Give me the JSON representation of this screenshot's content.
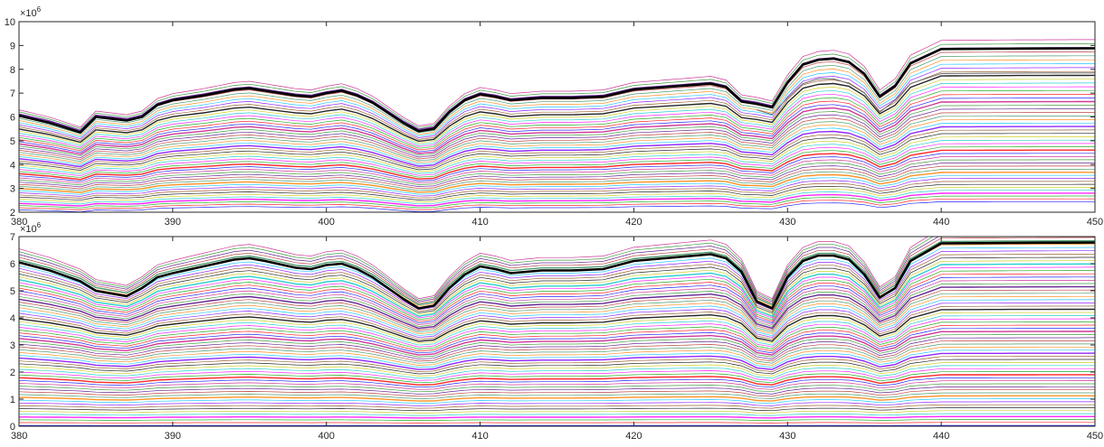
{
  "chart_data": [
    {
      "type": "line",
      "xlim": [
        380,
        450
      ],
      "ylim": [
        2,
        10
      ],
      "x_ticks": [
        "380",
        "390",
        "400",
        "410",
        "420",
        "430",
        "440",
        "450"
      ],
      "y_ticks": [
        "2",
        "3",
        "4",
        "5",
        "6",
        "7",
        "8",
        "9",
        "10"
      ],
      "exponent_label": "×10",
      "exponent_power": "6",
      "grid": false,
      "highlight_series": {
        "color": "#000000",
        "x": [
          380,
          382,
          384,
          385,
          387,
          388,
          389,
          390,
          392,
          394,
          395,
          396,
          398,
          399,
          400,
          401,
          402,
          403,
          405,
          406,
          407,
          408,
          409,
          410,
          411,
          412,
          414,
          416,
          418,
          420,
          422,
          424,
          425,
          426,
          427,
          428,
          429,
          430,
          431,
          432,
          433,
          434,
          435,
          436,
          437,
          438,
          440,
          445,
          450
        ],
        "values": [
          6.05,
          5.75,
          5.35,
          6.0,
          5.85,
          6.0,
          6.5,
          6.7,
          6.9,
          7.15,
          7.2,
          7.1,
          6.9,
          6.85,
          7.0,
          7.1,
          6.9,
          6.6,
          5.75,
          5.4,
          5.5,
          6.2,
          6.7,
          6.95,
          6.85,
          6.7,
          6.8,
          6.8,
          6.85,
          7.15,
          7.25,
          7.35,
          7.4,
          7.25,
          6.65,
          6.55,
          6.4,
          7.45,
          8.2,
          8.4,
          8.45,
          8.3,
          7.8,
          6.85,
          7.3,
          8.25,
          8.85,
          8.87,
          8.88
        ]
      },
      "secondary_series": {
        "color": "#6e6e6e",
        "x": [
          428,
          429,
          430,
          431,
          432,
          433,
          434,
          435,
          436,
          437,
          438,
          440,
          445,
          450
        ],
        "values": [
          6.3,
          6.1,
          6.8,
          7.4,
          7.6,
          7.6,
          7.4,
          7.0,
          6.2,
          6.7,
          7.4,
          7.82,
          7.84,
          7.85
        ]
      },
      "band_series": {
        "count": 48,
        "start": 2.1,
        "end": 6.3,
        "colors": [
          "#0000ff",
          "#ff0000",
          "#00a000",
          "#ff00ff",
          "#00c8c8",
          "#c8c800",
          "#000000",
          "#8b4513",
          "#7f00ff",
          "#00bfff",
          "#ff7f00",
          "#2e8b57",
          "#b22222",
          "#4b0082",
          "#228b22",
          "#c71585"
        ]
      }
    },
    {
      "type": "line",
      "xlim": [
        380,
        450
      ],
      "ylim": [
        0,
        7
      ],
      "x_ticks": [
        "380",
        "390",
        "400",
        "410",
        "420",
        "430",
        "440",
        "450"
      ],
      "y_ticks": [
        "0",
        "1",
        "2",
        "3",
        "4",
        "5",
        "6",
        "7"
      ],
      "exponent_label": "×10",
      "exponent_power": "6",
      "grid": false,
      "highlight_series": {
        "color": "#000000",
        "x": [
          380,
          382,
          384,
          385,
          387,
          388,
          389,
          390,
          392,
          394,
          395,
          396,
          398,
          399,
          400,
          401,
          402,
          403,
          405,
          406,
          407,
          408,
          409,
          410,
          411,
          412,
          414,
          416,
          418,
          420,
          422,
          424,
          425,
          426,
          427,
          428,
          429,
          430,
          431,
          432,
          433,
          434,
          435,
          436,
          437,
          438,
          440,
          445,
          450
        ],
        "values": [
          6.05,
          5.75,
          5.35,
          5.0,
          4.8,
          5.1,
          5.5,
          5.65,
          5.9,
          6.15,
          6.2,
          6.1,
          5.85,
          5.8,
          5.95,
          6.0,
          5.8,
          5.5,
          4.7,
          4.35,
          4.45,
          5.1,
          5.6,
          5.9,
          5.8,
          5.65,
          5.75,
          5.75,
          5.8,
          6.1,
          6.2,
          6.3,
          6.35,
          6.2,
          5.7,
          4.6,
          4.35,
          5.5,
          6.1,
          6.3,
          6.3,
          6.15,
          5.6,
          4.75,
          5.1,
          6.1,
          6.75,
          6.77,
          6.78
        ]
      },
      "band_series": {
        "count": 64,
        "start": 0.03,
        "end": 6.55,
        "colors": [
          "#0000ff",
          "#ff0000",
          "#00a000",
          "#ff00ff",
          "#00c8c8",
          "#c8c800",
          "#000000",
          "#8b4513",
          "#7f00ff",
          "#00bfff",
          "#ff7f00",
          "#2e8b57",
          "#b22222",
          "#4b0082",
          "#228b22",
          "#c71585"
        ]
      }
    }
  ]
}
